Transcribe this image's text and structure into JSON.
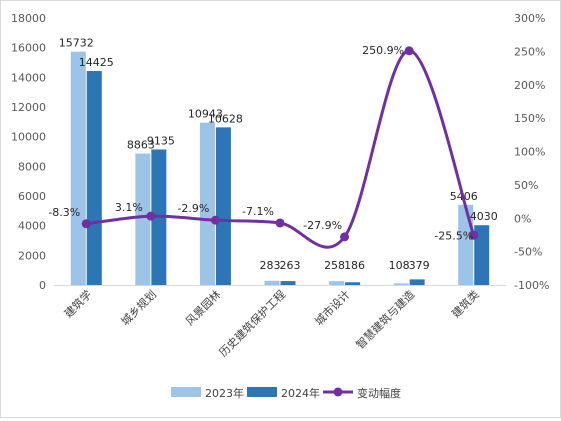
{
  "chart_data": {
    "type": "bar",
    "title": "",
    "categories": [
      "建筑学",
      "城乡规划",
      "风景园林",
      "历史建筑保护工程",
      "城市设计",
      "智慧建筑与建造",
      "建筑类"
    ],
    "series": [
      {
        "name": "2023年",
        "kind": "bar",
        "axis": "left",
        "values": [
          15732,
          8863,
          10943,
          283,
          258,
          108,
          5406
        ],
        "labels": [
          "15732",
          "8863",
          "10943",
          "283",
          "258",
          "108",
          "5406"
        ],
        "color": "#9dc3e6"
      },
      {
        "name": "2024年",
        "kind": "bar",
        "axis": "left",
        "values": [
          14425,
          9135,
          10628,
          263,
          186,
          379,
          4030
        ],
        "labels": [
          "14425",
          "9135",
          "10628",
          "263",
          "186",
          "379",
          "4030"
        ],
        "color": "#2e75b6"
      },
      {
        "name": "变动幅度",
        "kind": "line",
        "axis": "right",
        "values": [
          -8.3,
          3.1,
          -2.9,
          -7.1,
          -27.9,
          250.9,
          -25.5
        ],
        "labels": [
          "-8.3%",
          "3.1%",
          "-2.9%",
          "-7.1%",
          "-27.9%",
          "250.9%",
          "-25.5%"
        ],
        "color": "#7030a0"
      }
    ],
    "y_left": {
      "min": 0,
      "max": 18000,
      "step": 2000,
      "ticks": [
        "0",
        "2000",
        "4000",
        "6000",
        "8000",
        "10000",
        "12000",
        "14000",
        "16000",
        "18000"
      ]
    },
    "y_right": {
      "min": -100,
      "max": 300,
      "step": 50,
      "ticks": [
        "-100%",
        "-50%",
        "0%",
        "50%",
        "100%",
        "150%",
        "200%",
        "250%",
        "300%"
      ]
    },
    "grid": false,
    "legend_position": "bottom"
  }
}
